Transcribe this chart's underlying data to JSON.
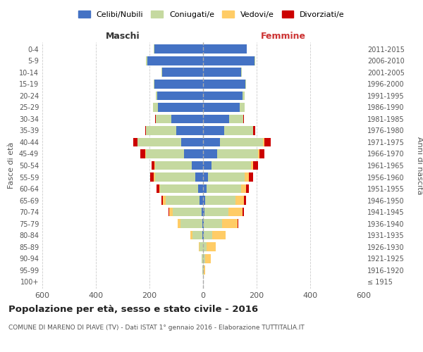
{
  "age_groups": [
    "100+",
    "95-99",
    "90-94",
    "85-89",
    "80-84",
    "75-79",
    "70-74",
    "65-69",
    "60-64",
    "55-59",
    "50-54",
    "45-49",
    "40-44",
    "35-39",
    "30-34",
    "25-29",
    "20-24",
    "15-19",
    "10-14",
    "5-9",
    "0-4"
  ],
  "birth_years": [
    "≤ 1915",
    "1916-1920",
    "1921-1925",
    "1926-1930",
    "1931-1935",
    "1936-1940",
    "1941-1945",
    "1946-1950",
    "1951-1955",
    "1956-1960",
    "1961-1965",
    "1966-1970",
    "1971-1975",
    "1976-1980",
    "1981-1985",
    "1986-1990",
    "1991-1995",
    "1996-2000",
    "2001-2005",
    "2006-2010",
    "2011-2015"
  ],
  "maschi": {
    "celibi": [
      0,
      0,
      0,
      0,
      2,
      3,
      5,
      12,
      18,
      28,
      42,
      72,
      82,
      100,
      118,
      168,
      172,
      182,
      152,
      208,
      182
    ],
    "coniugati": [
      0,
      2,
      5,
      12,
      38,
      82,
      108,
      128,
      142,
      152,
      138,
      142,
      162,
      112,
      58,
      18,
      5,
      2,
      4,
      4,
      2
    ],
    "vedovi": [
      0,
      0,
      1,
      3,
      7,
      11,
      14,
      9,
      4,
      4,
      2,
      2,
      2,
      0,
      0,
      2,
      0,
      0,
      0,
      0,
      0
    ],
    "divorziati": [
      0,
      0,
      0,
      0,
      0,
      0,
      2,
      5,
      10,
      14,
      11,
      18,
      14,
      5,
      2,
      0,
      0,
      0,
      0,
      0,
      0
    ]
  },
  "femmine": {
    "nubili": [
      0,
      0,
      0,
      0,
      2,
      3,
      4,
      8,
      14,
      18,
      32,
      52,
      62,
      78,
      98,
      138,
      148,
      158,
      142,
      192,
      162
    ],
    "coniugate": [
      0,
      2,
      8,
      14,
      33,
      68,
      92,
      112,
      128,
      138,
      148,
      152,
      162,
      108,
      52,
      18,
      8,
      2,
      2,
      2,
      2
    ],
    "vedove": [
      0,
      5,
      20,
      34,
      48,
      58,
      52,
      33,
      18,
      14,
      8,
      6,
      6,
      2,
      0,
      0,
      0,
      0,
      0,
      0,
      0
    ],
    "divorziate": [
      0,
      0,
      0,
      0,
      0,
      2,
      4,
      8,
      11,
      18,
      18,
      18,
      22,
      8,
      2,
      0,
      0,
      0,
      0,
      0,
      0
    ]
  },
  "colors": {
    "celibi": "#4472c4",
    "coniugati": "#c5d9a0",
    "vedovi": "#ffcc66",
    "divorziati": "#cc0000"
  },
  "xlim": 600,
  "title": "Popolazione per età, sesso e stato civile - 2016",
  "subtitle": "COMUNE DI MARENO DI PIAVE (TV) - Dati ISTAT 1° gennaio 2016 - Elaborazione TUTTITALIA.IT",
  "xlabel_left": "Maschi",
  "xlabel_right": "Femmine",
  "ylabel_left": "Fasce di età",
  "ylabel_right": "Anni di nascita",
  "bg_color": "#ffffff",
  "grid_color": "#cccccc",
  "legend_labels": [
    "Celibi/Nubili",
    "Coniugati/e",
    "Vedovi/e",
    "Divorziati/e"
  ]
}
